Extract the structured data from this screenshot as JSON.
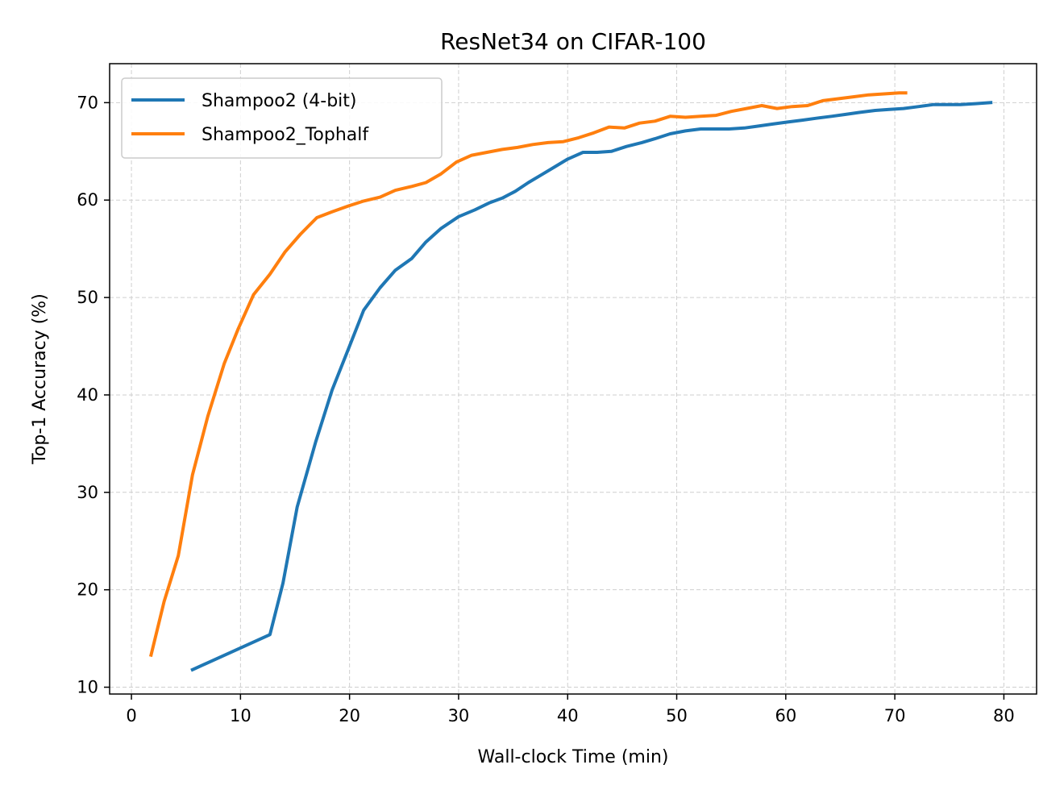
{
  "chart_data": {
    "type": "line",
    "title": "ResNet34 on CIFAR-100",
    "xlabel": "Wall-clock Time (min)",
    "ylabel": "Top-1 Accuracy (%)",
    "xlim": [
      -2,
      83
    ],
    "ylim": [
      9.3,
      74
    ],
    "xticks": [
      0,
      10,
      20,
      30,
      40,
      50,
      60,
      70,
      80
    ],
    "yticks": [
      10,
      20,
      30,
      40,
      50,
      60,
      70
    ],
    "grid": true,
    "legend_position": "top-left",
    "series": [
      {
        "name": "Shampoo2 (4-bit)",
        "color": "#1f77b4",
        "x": [
          5.6,
          12.7,
          13.9,
          15.2,
          16.9,
          18.4,
          20.0,
          21.3,
          22.8,
          24.2,
          25.7,
          27.0,
          28.4,
          30.0,
          31.5,
          32.8,
          34.0,
          35.2,
          36.4,
          37.6,
          38.8,
          40.0,
          41.4,
          42.7,
          44.0,
          45.4,
          46.8,
          48.0,
          49.4,
          50.8,
          52.2,
          53.5,
          54.8,
          56.2,
          57.5,
          58.8,
          60.1,
          61.5,
          62.8,
          64.2,
          65.5,
          66.8,
          68.2,
          69.5,
          70.8,
          72.2,
          73.5,
          74.8,
          76.0,
          77.4,
          78.8
        ],
        "y": [
          11.8,
          15.4,
          20.7,
          28.5,
          35.2,
          40.5,
          45.0,
          48.7,
          51.0,
          52.8,
          54.0,
          55.7,
          57.1,
          58.3,
          59.0,
          59.7,
          60.2,
          60.9,
          61.8,
          62.6,
          63.4,
          64.2,
          64.9,
          64.9,
          65.0,
          65.5,
          65.9,
          66.3,
          66.8,
          67.1,
          67.3,
          67.3,
          67.3,
          67.4,
          67.6,
          67.8,
          68.0,
          68.2,
          68.4,
          68.6,
          68.8,
          69.0,
          69.2,
          69.3,
          69.4,
          69.6,
          69.8,
          69.8,
          69.8,
          69.9,
          70.0
        ]
      },
      {
        "name": "Shampoo2_Tophalf",
        "color": "#ff7f0e",
        "x": [
          1.8,
          3.0,
          4.3,
          5.6,
          7.0,
          8.5,
          9.8,
          11.2,
          12.7,
          14.1,
          15.5,
          17.0,
          18.4,
          19.9,
          21.3,
          22.8,
          24.2,
          25.7,
          27.0,
          28.4,
          29.8,
          31.2,
          32.6,
          34.0,
          35.4,
          36.8,
          38.2,
          39.6,
          41.0,
          42.4,
          43.8,
          45.2,
          46.6,
          48.0,
          49.4,
          50.8,
          52.2,
          53.6,
          55.0,
          56.4,
          57.8,
          59.2,
          60.6,
          62.0,
          63.4,
          64.8,
          66.2,
          67.6,
          69.0,
          70.4,
          71.0
        ],
        "y": [
          13.3,
          18.8,
          23.5,
          31.8,
          37.8,
          43.2,
          46.8,
          50.3,
          52.4,
          54.7,
          56.5,
          58.2,
          58.8,
          59.4,
          59.9,
          60.3,
          61.0,
          61.4,
          61.8,
          62.7,
          63.9,
          64.6,
          64.9,
          65.2,
          65.4,
          65.7,
          65.9,
          66.0,
          66.4,
          66.9,
          67.5,
          67.4,
          67.9,
          68.1,
          68.6,
          68.5,
          68.6,
          68.7,
          69.1,
          69.4,
          69.7,
          69.4,
          69.6,
          69.7,
          70.2,
          70.4,
          70.6,
          70.8,
          70.9,
          71.0,
          71.0
        ]
      }
    ]
  }
}
